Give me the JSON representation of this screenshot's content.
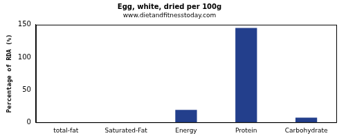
{
  "chart_data": {
    "type": "bar",
    "title": "Egg, white, dried per 100g",
    "subtitle": "www.dietandfitnesstoday.com",
    "y_label": "Percentage of RDA (%)",
    "categories": [
      "total-fat",
      "Saturated-Fat",
      "Energy",
      "Protein",
      "Carbohydrate"
    ],
    "values": [
      0,
      0,
      19,
      145,
      7
    ],
    "color": "#233f8c",
    "ylim": [
      0,
      150
    ],
    "yticks": [
      0,
      50,
      100,
      150
    ],
    "grid": false
  }
}
